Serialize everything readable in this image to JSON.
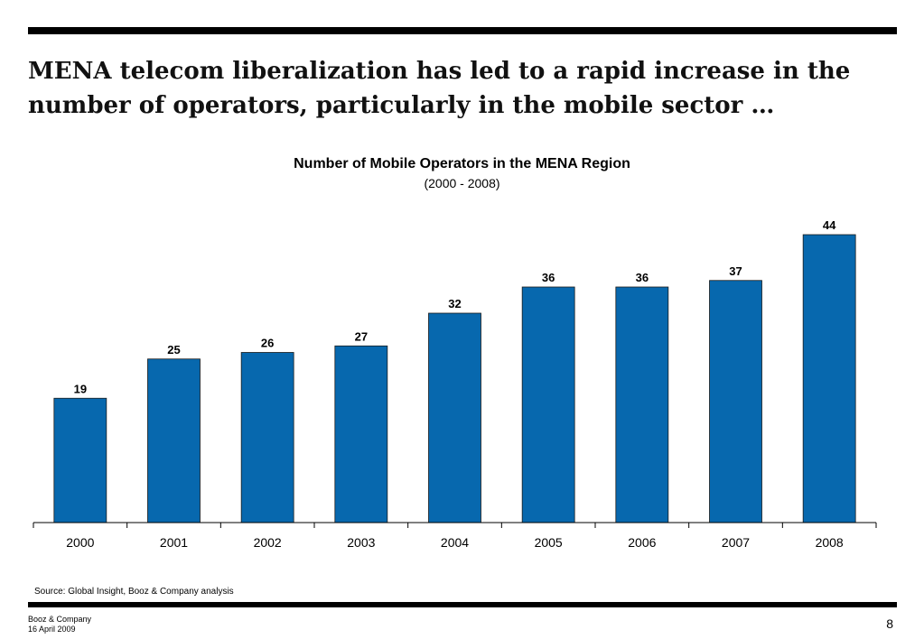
{
  "slide": {
    "headline": "MENA telecom liberalization has led to a rapid increase in the number of operators, particularly in the mobile sector …",
    "source": "Source:  Global Insight, Booz & Company analysis",
    "footer_company": "Booz & Company",
    "footer_date": "16 April 2009",
    "page_number": "8"
  },
  "chart_data": {
    "type": "bar",
    "title": "Number of Mobile Operators in the MENA Region",
    "subtitle": "(2000 - 2008)",
    "categories": [
      "2000",
      "2001",
      "2002",
      "2003",
      "2004",
      "2005",
      "2006",
      "2007",
      "2008"
    ],
    "values": [
      19,
      25,
      26,
      27,
      32,
      36,
      36,
      37,
      44
    ],
    "ylim": [
      0,
      44
    ],
    "bar_color": "#0768AE",
    "data_labels": true,
    "grid": false,
    "legend": "none"
  }
}
